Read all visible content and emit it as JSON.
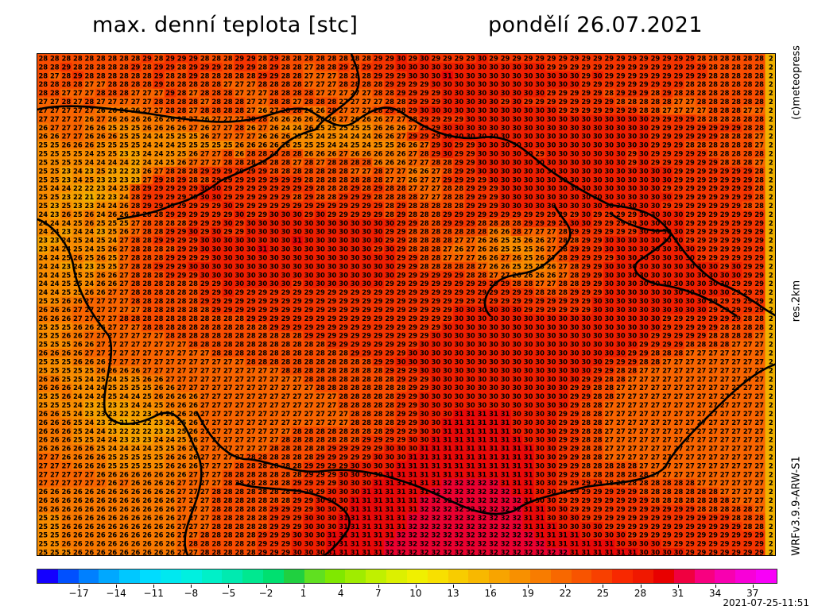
{
  "header": {
    "title": "max. denní teplota [stc]",
    "date": "pondělí 26.07.2021"
  },
  "side_labels": {
    "copyright": "(c)meteopress",
    "resolution": "res.2km",
    "model": "WRFv3.9.9-ARW-S1"
  },
  "legend": {
    "tick_labels": [
      "−17",
      "−14",
      "−11",
      "−8",
      "−5",
      "−2",
      "1",
      "4",
      "7",
      "10",
      "13",
      "16",
      "19",
      "22",
      "25",
      "28",
      "31",
      "34",
      "37"
    ],
    "colors": [
      "#1400ff",
      "#0050ff",
      "#0080ff",
      "#00a8ff",
      "#00c8ff",
      "#00dcff",
      "#00e8f0",
      "#00f0e0",
      "#00f0c8",
      "#00eab0",
      "#00e890",
      "#00e070",
      "#20d040",
      "#60e020",
      "#80e800",
      "#a0ec00",
      "#c0f000",
      "#dcf000",
      "#f0f000",
      "#f8e000",
      "#f8cc00",
      "#f8b800",
      "#f8a400",
      "#f89000",
      "#f87c00",
      "#f86800",
      "#f85400",
      "#f84000",
      "#f82800",
      "#f01800",
      "#e80000",
      "#f00040",
      "#f80080",
      "#f800b0",
      "#f800d8",
      "#f800f8"
    ]
  },
  "timestamp": "2021-07-25-11:51",
  "map": {
    "cols": 64,
    "rows": 58,
    "numbers": [
      "2828282828282828282928292929282828292928292828282828282828292930293029292929302929292929292929292929292929292929292828282828282",
      "2828292828282828292829292829292928292928292828272828292829292930303030303030303030303030292929292929292929292929292928282828282",
      "2827282928282828282829282829282828282829292828272727282828292929303030313030303030303030303030293029292929292929292928282828282",
      "2828282827272828282829282828282827272728282828272727282828282929292930303030303030303030303030292929292929292929282828282828282",
      "2828272727282828272727292827282828272727282828282727272727282829292929303030303030303030292929292928292929282928282828282828282",
      "2727282728272727272728282828272828282727282827282828272727272828292929303030303029302929292929292929282828282827272828282828282",
      "2727272727262626262727282827282828282726272828262628272727282928293030303030303030303030302929292929292928282727272728282827272",
      "2727272726272626262626262727262727272828262626262626272626262727282929292930303030303030303030303030303030292929292828282828282",
      "2627272726262525252626262627262727282627262424262525252525262626272929303030303030303030303030303030303030292929292929292928282",
      "2626272726262625252424252525262727272726262625252425242424262627292929303030303030303030303030303030303030292929292929282828272",
      "2525262626252525252424242525252525262626262625252524242524252526262729302929303030303030303030303030303030292929282828282828272",
      "2525252524252523232424252526272728262828282828262626272626262626272829302929303030303029303030303030302930292929292928282828282",
      "2525252524242424222424252627272728282828282827282728282828262626272728282929303030303030303030303030302930292929292929282828272",
      "2525232423252322232627282828292929292929282828282828282727282727262627282929303030303030303030303030303030303029292929292929282",
      "2525232425232323232729282928282929292929292929282828282828282727262727292929293030303030303030303030303030303029292929292929282",
      "2524242222232425282929292929303029292929292929292828282928292828272727282829292930303030303030303030303030302929292929292929282",
      "2525232221222324282929292929303029292929292928292828292929282828282727282829292930303030303030303030303030303029292929292929282",
      "2523252323242426282929292929292930292929292929292929292929292829282828282829292930303030303030303030303030302929292929292928282",
      "2423262526242626282828292929292929302929303030293029292929292829282828292929292929292929292929302929292930303030292929292929292",
      "2424242526252525272828282829292930293030303030303030303030303029292828292929282828282929292930302929292930303030292929292929292",
      "2424232424232526272828292930293029293030303030303030303030302929282828282828282626282727272829292929292930303030292929292929292",
      "2323242524252427282829292929303030303030303031303030303030302929282828282727262625252626272828292930303030303030292929292929292",
      "2324242524252627282828282929303030303031303030303030303030293029282828272627262625252526272829292930303030303030302929292929292",
      "2424252625262527282828292929293030303030303030303030303030303029292828272727262627262526272829292929303030303030302929292929292",
      "2424232423252527282829292930303030303030303030303030303030303029292828282828272626252525262728292930303030303030303030293029292",
      "2424252525262627282828292929303030303030303030303030303030303029292929292928282727262626262728292930303030303030303030303029292",
      "2424252524262627282828282828292930303030303029303030303030302929292929292929292929282827272828292930303030303030303030302929292",
      "2424252526262727282828282828292930292929292929292929292929292929292929292929292929292928282829292930303030303030303030302929292",
      "2525262627272727282828282828292929292929292929292929292929292929292929292929292929292929292929293030303030303030303029292929292",
      "2626262727272727272828282828282929292929292929292929292929292929292929293030303030302929292929293030303030303030303029292929292",
      "2626262727272728282828282828282828282929292929292929292929292929292929293030303030303030303030303030303030302929292929292928282",
      "2525252626262727272828282828282828282828292929292929292929292929292929303030303030303030303030303030303030302929292929282828282",
      "2525262627272727272727282828282828282828282828292929292929292929292930303030303030303030303030303030303030292929292928282828272",
      "2525252626272727272727272728282828282828282828282829292929292929293030303030303030303030303030303030303029292929282828282727272",
      "2626262627272727272727272727272828282828282828282828282929292929303030303030303030303030303030303030302929282828272727272727272",
      "2525252626262727272727272727272727272828282828282828282828292930303030303030303030303030303030303029292928282727272727272727272",
      "2525252525262626262727272727272727272727272828282828282828282929293030303030303030303030303030302929282827272727272727272727272",
      "2626252524252425252626272727272727272727272727282828282828282829292930303030303030303030303030292928282727272727272727272727272",
      "2626262424242525252526262727272727272727272727272828282828282828292930303030303030303030303029292828272727272727272727272727272",
      "2525262424242524242526262626272727272727272727272727282828282829293030303030303030303030303029292828272727272727272727272727272",
      "2525252423232323242425262626272727272727272727272727282828282829293030303030303030303030303029282827272727272727272727272727272",
      "2626252423232322222324252626272727272727272727272727272828282829293030303131313131303030302929282827272727272727272727272727272",
      "2626262524232321222223242526272727272727272727272727272828282829293030313131313131303030302929282827272727272727272727272727272",
      "2626262524242322222223232526272727272727272728282828282828282929293030313131313131303030302929282827272727272727272727272727272",
      "2626262525242423232324242526272727272727272828282828282829292929303031313131313131313030302929282827272727272727272727272727272",
      "2626262626252424242425252626272727272727282828282829292929293030303131313131313131313130302929282827272727272727272727272727272",
      "2727262626262525252525262626272727272828282828282929292929303030313131313131313131313130302929282827272727272727272727272727272",
      "2727272626262525252525262626272727282828282828292929293030303031313131313131313131313130302929282828282827272727272727272727272",
      "2727272727262626262626262627272728282828282828292929303030303131313131313131313131313130302929282828282828272727272727272727272",
      "2727272727272627262626262727272728282828282829292929303030313131313131323232323231313130302929292928282828282828282727272727272",
      "2626262626262626262626262727272828282828282829292930303031313131313132323232323232313130302929292929292928282828282828272727272",
      "2626262626262626262626262727272828282828282829293030303131313131313232323232323232323130302929292929292929282828282828282727272",
      "2626262626262626262626262727272828282828292929293030303131313131313232323232323232323131303029292929292929292929292828282828272",
      "2525262626262626262626262727272828282828292929303030313131313131323232323232323232323131303030292929292929292929292929292828282",
      "2525262626262626262626262727272828282828292929303030313131313131323232323232323232323131313030303029292929292929292929292928282",
      "2525262626262626262626262727282828282829292930303031313131313132323232323232323232323231313131303030302929292929292929292929292",
      "2525262626262626262626262728282828282829292930303031313131313232323232323232323232323232313131313131303030302929292929292929292",
      "2525252626262626262626262727282828282829292930303031313131313232323232323232323232323232323231313131313130303030292929292929292"
    ],
    "borders": [
      "M 0 208 C 20 215 40 240 45 265 C 50 300 70 330 90 355 C 100 380 80 420 85 450 C 95 470 120 470 150 455 C 180 440 190 480 200 500 C 215 530 200 560 190 590 C 180 620 190 632 190 632",
      "M 0 70 C 40 60 100 70 140 75 C 200 85 240 90 280 80 C 300 75 320 65 340 70 C 360 80 380 100 400 85 C 420 70 440 60 460 75 C 490 95 520 110 560 105 C 600 100 620 130 650 150 C 680 170 700 180 720 190 C 760 195 780 200 800 230 C 820 260 840 280 860 290 C 890 300 910 320 930 330",
      "M 930 390 C 900 400 870 430 850 450 C 820 480 800 500 790 520 C 770 540 720 540 690 545 C 650 555 620 560 600 575 C 560 590 520 560 480 545 C 440 530 400 520 360 525 C 320 530 290 510 260 510 C 230 505 210 470 200 450",
      "M 395 0 C 405 25 410 40 395 55 C 380 70 360 80 350 95 C 330 100 310 110 300 125 C 280 140 250 150 230 160 C 210 175 190 185 170 190 C 150 200 120 205 100 208",
      "M 650 190 C 660 210 680 220 665 240 C 650 255 640 265 630 270 C 610 280 590 275 575 290 C 560 305 560 320 570 330",
      "M 720 200 C 740 215 770 225 790 222 C 810 225 780 245 760 258 C 740 270 760 285 780 290 C 820 295 850 310 880 330",
      "M 250 540 C 280 550 320 545 350 555 C 380 565 400 580 390 600 C 380 615 370 625 360 632"
    ]
  }
}
